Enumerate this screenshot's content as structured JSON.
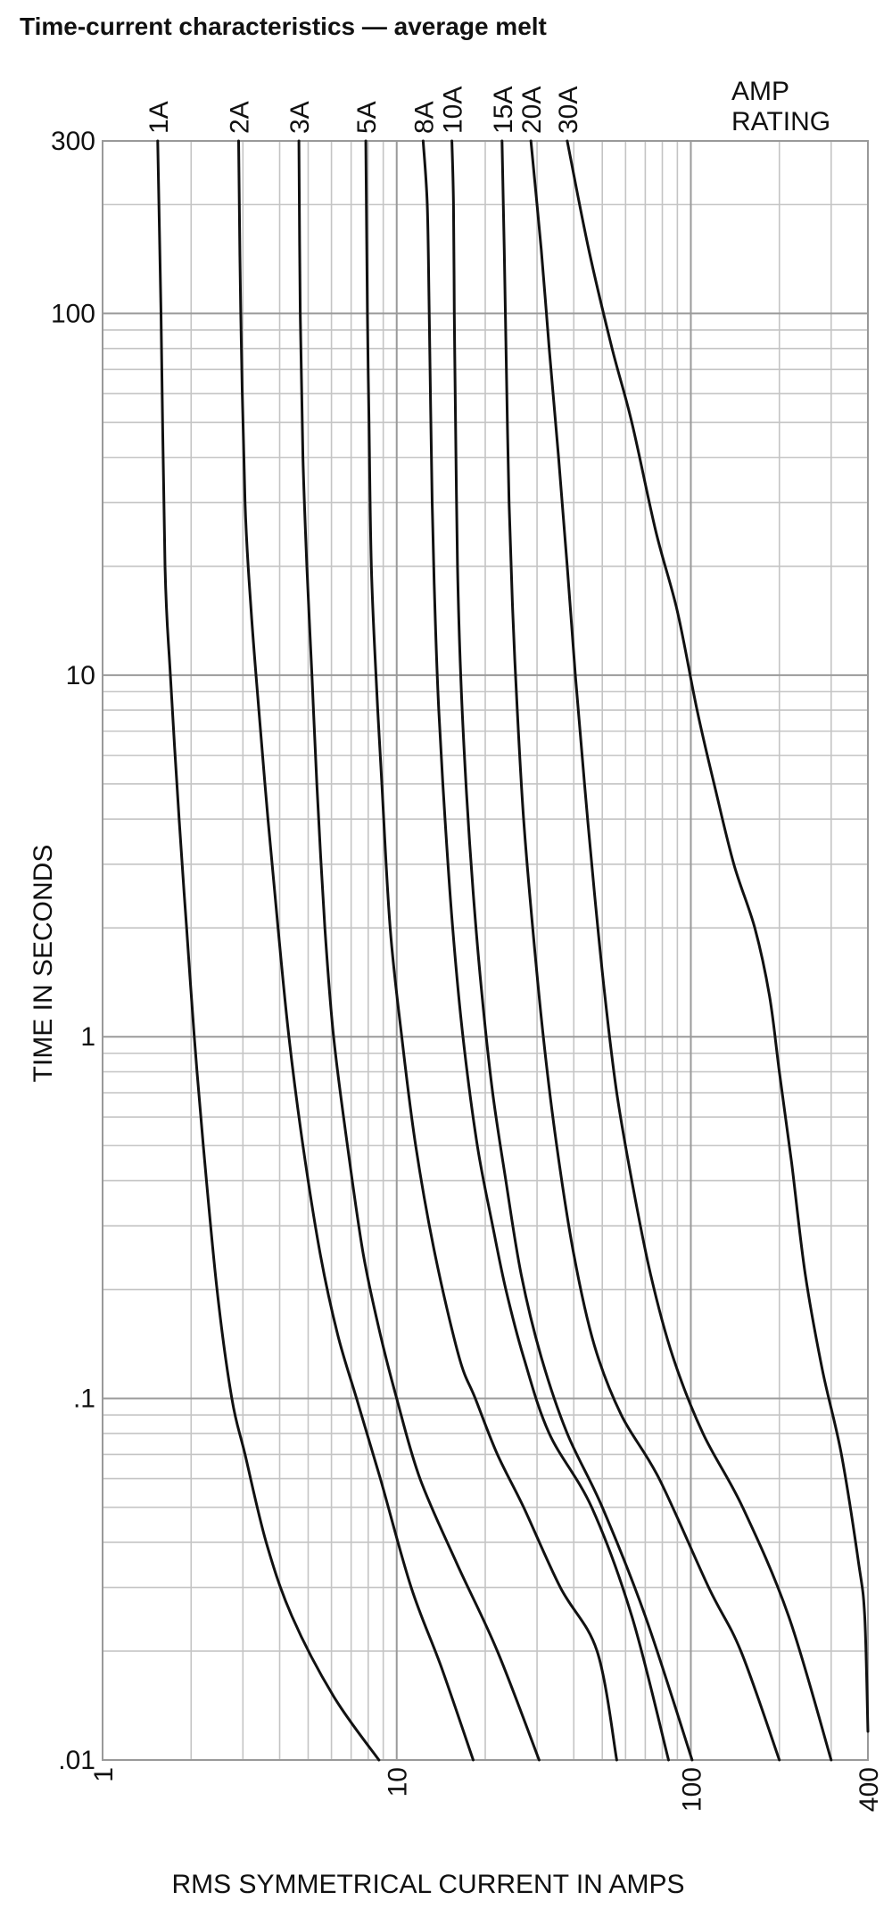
{
  "title": "Time-current characteristics — average melt",
  "chart_data": {
    "type": "line",
    "xscale": "log",
    "yscale": "log",
    "xlim": [
      1,
      400
    ],
    "ylim": [
      0.01,
      300
    ],
    "xlabel": "RMS SYMMETRICAL CURRENT IN AMPS",
    "ylabel": "TIME IN SECONDS",
    "legend_title": [
      "AMP",
      "RATING"
    ],
    "grid": true,
    "xticks": [
      {
        "value": 1,
        "label": "1"
      },
      {
        "value": 10,
        "label": "10"
      },
      {
        "value": 100,
        "label": "100"
      },
      {
        "value": 400,
        "label": "400"
      }
    ],
    "yticks": [
      {
        "value": 0.01,
        "label": ".01"
      },
      {
        "value": 0.1,
        "label": ".1"
      },
      {
        "value": 1,
        "label": "1"
      },
      {
        "value": 10,
        "label": "10"
      },
      {
        "value": 100,
        "label": "100"
      },
      {
        "value": 300,
        "label": "300"
      }
    ],
    "series": [
      {
        "name": "1A",
        "points": [
          [
            1.54,
            300
          ],
          [
            1.58,
            100
          ],
          [
            1.63,
            20
          ],
          [
            1.7,
            10
          ],
          [
            1.82,
            4
          ],
          [
            1.93,
            2
          ],
          [
            2.05,
            1
          ],
          [
            2.2,
            0.5
          ],
          [
            2.45,
            0.2
          ],
          [
            2.75,
            0.1
          ],
          [
            3.05,
            0.07
          ],
          [
            3.6,
            0.04
          ],
          [
            4.4,
            0.025
          ],
          [
            6.1,
            0.015
          ],
          [
            8.7,
            0.01
          ]
        ]
      },
      {
        "name": "2A",
        "points": [
          [
            2.9,
            300
          ],
          [
            2.95,
            100
          ],
          [
            3.05,
            30
          ],
          [
            3.2,
            15
          ],
          [
            3.4,
            8
          ],
          [
            3.65,
            4
          ],
          [
            3.95,
            2
          ],
          [
            4.3,
            1
          ],
          [
            4.8,
            0.5
          ],
          [
            5.5,
            0.25
          ],
          [
            6.3,
            0.15
          ],
          [
            7.3,
            0.1
          ],
          [
            8.8,
            0.06
          ],
          [
            11.2,
            0.03
          ],
          [
            14.2,
            0.018
          ],
          [
            18.2,
            0.01
          ]
        ]
      },
      {
        "name": "3A",
        "points": [
          [
            4.65,
            300
          ],
          [
            4.7,
            100
          ],
          [
            4.8,
            40
          ],
          [
            4.95,
            20
          ],
          [
            5.15,
            10
          ],
          [
            5.35,
            5
          ],
          [
            5.7,
            2
          ],
          [
            6.1,
            1
          ],
          [
            6.8,
            0.5
          ],
          [
            7.7,
            0.25
          ],
          [
            8.8,
            0.15
          ],
          [
            10.0,
            0.1
          ],
          [
            12.0,
            0.06
          ],
          [
            16,
            0.035
          ],
          [
            22,
            0.02
          ],
          [
            30.5,
            0.01
          ]
        ]
      },
      {
        "name": "5A",
        "points": [
          [
            7.85,
            300
          ],
          [
            7.95,
            100
          ],
          [
            8.05,
            50
          ],
          [
            8.2,
            20
          ],
          [
            8.5,
            10
          ],
          [
            8.9,
            5
          ],
          [
            9.5,
            2
          ],
          [
            10.4,
            1
          ],
          [
            11.6,
            0.5
          ],
          [
            13.5,
            0.25
          ],
          [
            16.3,
            0.13
          ],
          [
            18.5,
            0.1
          ],
          [
            22,
            0.07
          ],
          [
            27,
            0.05
          ],
          [
            36,
            0.03
          ],
          [
            48,
            0.02
          ],
          [
            56,
            0.01
          ]
        ]
      },
      {
        "name": "8A",
        "points": [
          [
            12.3,
            300
          ],
          [
            12.7,
            200
          ],
          [
            12.9,
            100
          ],
          [
            13.2,
            30
          ],
          [
            13.5,
            15
          ],
          [
            13.9,
            8
          ],
          [
            14.6,
            4
          ],
          [
            15.5,
            2
          ],
          [
            16.8,
            1
          ],
          [
            18.8,
            0.5
          ],
          [
            21.2,
            0.3
          ],
          [
            23.5,
            0.2
          ],
          [
            27,
            0.13
          ],
          [
            33,
            0.08
          ],
          [
            46,
            0.05
          ],
          [
            63,
            0.025
          ],
          [
            84,
            0.01
          ]
        ]
      },
      {
        "name": "10A",
        "points": [
          [
            15.4,
            300
          ],
          [
            15.6,
            200
          ],
          [
            15.7,
            100
          ],
          [
            15.85,
            50
          ],
          [
            16.1,
            20
          ],
          [
            16.5,
            10
          ],
          [
            17.2,
            5
          ],
          [
            18.2,
            2.5
          ],
          [
            19.5,
            1.3
          ],
          [
            21.2,
            0.7
          ],
          [
            23.5,
            0.4
          ],
          [
            26.5,
            0.22
          ],
          [
            31,
            0.13
          ],
          [
            38,
            0.08
          ],
          [
            50,
            0.05
          ],
          [
            70,
            0.025
          ],
          [
            101,
            0.01
          ]
        ]
      },
      {
        "name": "15A",
        "points": [
          [
            22.8,
            300
          ],
          [
            23.2,
            150
          ],
          [
            23.6,
            70
          ],
          [
            24.1,
            30
          ],
          [
            24.8,
            15
          ],
          [
            25.7,
            8
          ],
          [
            27,
            4
          ],
          [
            29,
            2
          ],
          [
            31.5,
            1
          ],
          [
            35,
            0.5
          ],
          [
            40,
            0.25
          ],
          [
            47,
            0.14
          ],
          [
            58,
            0.09
          ],
          [
            78,
            0.06
          ],
          [
            115,
            0.03
          ],
          [
            148,
            0.02
          ],
          [
            200,
            0.01
          ]
        ]
      },
      {
        "name": "20A",
        "points": [
          [
            28.6,
            300
          ],
          [
            31,
            150
          ],
          [
            33,
            80
          ],
          [
            35.5,
            40
          ],
          [
            38,
            20
          ],
          [
            40.5,
            10
          ],
          [
            43.5,
            5
          ],
          [
            47,
            2.5
          ],
          [
            51,
            1.3
          ],
          [
            56,
            0.7
          ],
          [
            63,
            0.4
          ],
          [
            73,
            0.22
          ],
          [
            87,
            0.13
          ],
          [
            110,
            0.08
          ],
          [
            150,
            0.05
          ],
          [
            215,
            0.025
          ],
          [
            300,
            0.01
          ]
        ]
      },
      {
        "name": "30A",
        "points": [
          [
            38,
            300
          ],
          [
            45,
            150
          ],
          [
            54,
            80
          ],
          [
            63,
            50
          ],
          [
            76,
            25
          ],
          [
            90,
            15
          ],
          [
            105,
            8
          ],
          [
            120,
            5
          ],
          [
            140,
            3
          ],
          [
            165,
            2
          ],
          [
            185,
            1.3
          ],
          [
            200,
            0.8
          ],
          [
            220,
            0.45
          ],
          [
            245,
            0.22
          ],
          [
            280,
            0.12
          ],
          [
            325,
            0.07
          ],
          [
            372,
            0.035
          ],
          [
            390,
            0.025
          ],
          [
            400,
            0.012
          ]
        ]
      }
    ]
  }
}
